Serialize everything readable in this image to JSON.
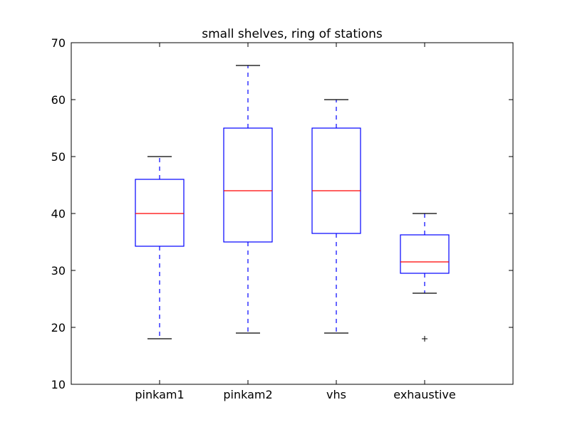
{
  "chart_data": {
    "type": "box",
    "title": "small shelves, ring of stations",
    "xlabel": "",
    "ylabel": "",
    "ylim": [
      10,
      70
    ],
    "yticks": [
      10,
      20,
      30,
      40,
      50,
      60,
      70
    ],
    "grid": false,
    "categories": [
      "pinkam1",
      "pinkam2",
      "vhs",
      "exhaustive"
    ],
    "boxes": [
      {
        "whisker_low": 18,
        "q1": 34.25,
        "median": 40,
        "q3": 46,
        "whisker_high": 50,
        "outliers": []
      },
      {
        "whisker_low": 19,
        "q1": 35,
        "median": 44,
        "q3": 55,
        "whisker_high": 66,
        "outliers": []
      },
      {
        "whisker_low": 19,
        "q1": 36.5,
        "median": 44,
        "q3": 55,
        "whisker_high": 60,
        "outliers": []
      },
      {
        "whisker_low": 26,
        "q1": 29.5,
        "median": 31.5,
        "q3": 36.25,
        "whisker_high": 40,
        "outliers": [
          18
        ]
      }
    ],
    "colors": {
      "box": "#0000ff",
      "median": "#ff0000",
      "cap": "#000000",
      "outlier": "#000000",
      "axes": "#000000"
    }
  }
}
